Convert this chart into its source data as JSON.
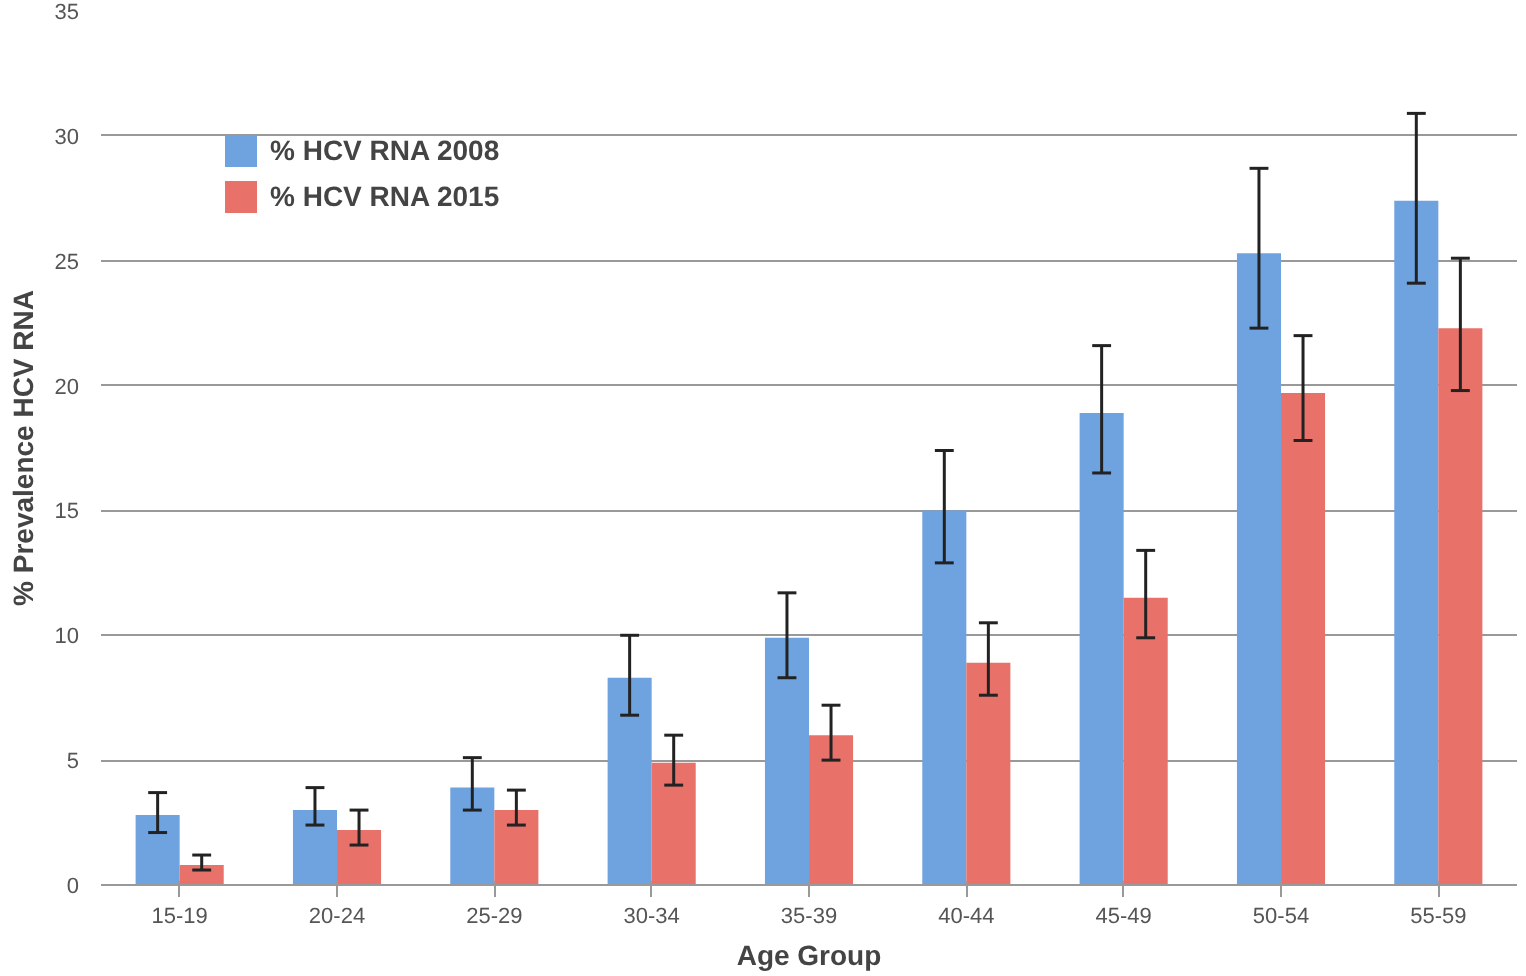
{
  "chart_data": {
    "type": "bar",
    "xlabel": "Age Group",
    "ylabel": "% Prevalence HCV RNA",
    "categories": [
      "15-19",
      "20-24",
      "25-29",
      "30-34",
      "35-39",
      "40-44",
      "45-49",
      "50-54",
      "55-59"
    ],
    "series": [
      {
        "name": "% HCV RNA 2008",
        "color": "#6fa3e0",
        "values": [
          2.8,
          3.0,
          3.9,
          8.3,
          9.9,
          15.0,
          18.9,
          25.3,
          27.4
        ],
        "errors": [
          [
            2.1,
            3.7
          ],
          [
            2.4,
            3.9
          ],
          [
            3.0,
            5.1
          ],
          [
            6.8,
            10.0
          ],
          [
            8.3,
            11.7
          ],
          [
            12.9,
            17.4
          ],
          [
            16.5,
            21.6
          ],
          [
            22.3,
            28.7
          ],
          [
            24.1,
            30.9
          ]
        ]
      },
      {
        "name": "% HCV RNA 2015",
        "color": "#e8726a",
        "values": [
          0.8,
          2.2,
          3.0,
          4.9,
          6.0,
          8.9,
          11.5,
          19.7,
          22.3
        ],
        "errors": [
          [
            0.6,
            1.2
          ],
          [
            1.6,
            3.0
          ],
          [
            2.4,
            3.8
          ],
          [
            4.0,
            6.0
          ],
          [
            5.0,
            7.2
          ],
          [
            7.6,
            10.5
          ],
          [
            9.9,
            13.4
          ],
          [
            17.8,
            22.0
          ],
          [
            19.8,
            25.1
          ]
        ]
      }
    ],
    "ylim": [
      0,
      35
    ],
    "yticks": [
      0,
      5,
      10,
      15,
      20,
      25,
      30,
      35
    ],
    "grid": "y",
    "legend": "top left"
  }
}
